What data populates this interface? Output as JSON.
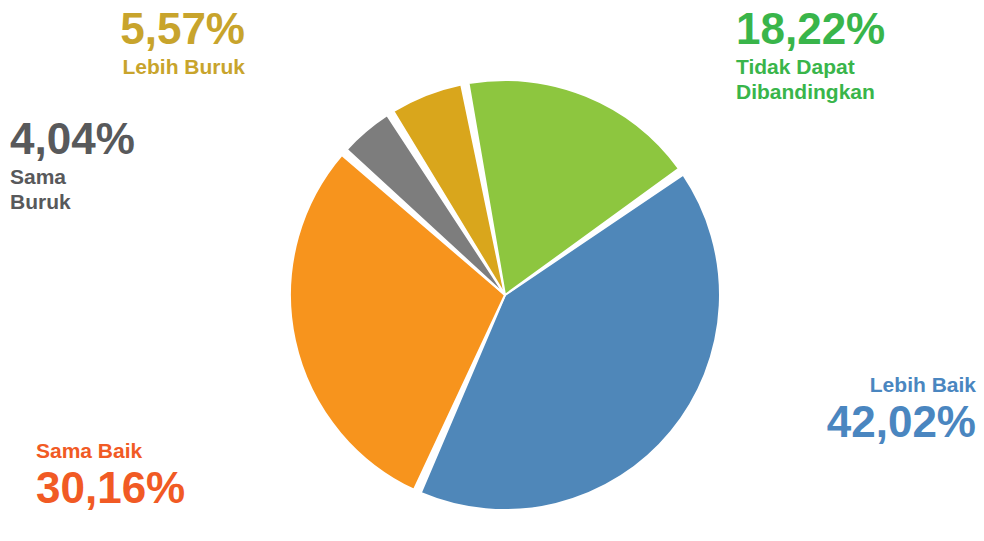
{
  "chart_data": {
    "type": "pie",
    "categories": [
      "Lebih Baik",
      "Sama Baik",
      "Sama Buruk",
      "Lebih Buruk",
      "Tidak Dapat Dibandingkan"
    ],
    "values": [
      42.02,
      30.16,
      4.04,
      5.57,
      18.22
    ],
    "value_labels": [
      "42,02%",
      "30,16%",
      "4,04%",
      "5,57%",
      "18,22%"
    ],
    "colors": [
      "#4f87b9",
      "#f7941d",
      "#7d7d7d",
      "#d9a61c",
      "#8dc63f"
    ],
    "data_labels": true
  }
}
